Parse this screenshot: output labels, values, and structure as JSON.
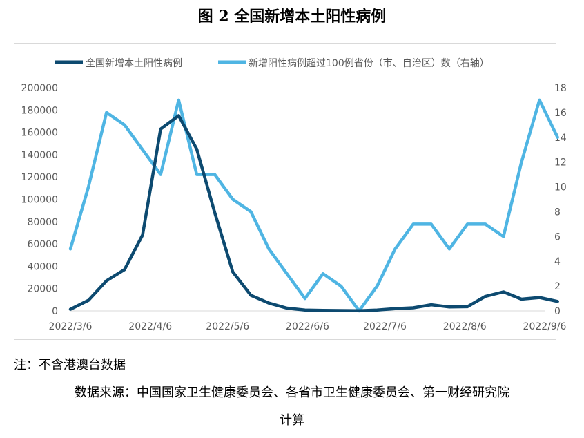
{
  "title": "图 2  全国新增本土阳性病例",
  "note": "注：不含港澳台数据",
  "source_line1": "数据来源：中国国家卫生健康委员会、各省市卫生健康委员会、第一财经研究院",
  "source_line2": "计算",
  "colors": {
    "series_main": "#0d4a70",
    "series_provinces": "#4fb5e3",
    "frame": "#d9d9d9",
    "text": "#595959"
  },
  "chart_data": {
    "type": "line",
    "xlabel": "",
    "ylabel": "",
    "x_ticks": [
      "2022/3/6",
      "2022/4/6",
      "2022/5/6",
      "2022/6/6",
      "2022/7/6",
      "2022/8/6",
      "2022/9/6"
    ],
    "x_dates": [
      "2022-03-06",
      "2022-03-13",
      "2022-03-20",
      "2022-03-27",
      "2022-04-03",
      "2022-04-10",
      "2022-04-17",
      "2022-04-24",
      "2022-05-01",
      "2022-05-08",
      "2022-05-15",
      "2022-05-22",
      "2022-05-29",
      "2022-06-05",
      "2022-06-12",
      "2022-06-19",
      "2022-06-26",
      "2022-07-03",
      "2022-07-10",
      "2022-07-17",
      "2022-07-24",
      "2022-07-31",
      "2022-08-07",
      "2022-08-14",
      "2022-08-21",
      "2022-08-28",
      "2022-09-04",
      "2022-09-11"
    ],
    "ylim_left": [
      0,
      200000
    ],
    "y_ticks_left": [
      "200000",
      "180000",
      "160000",
      "140000",
      "120000",
      "100000",
      "80000",
      "60000",
      "40000",
      "20000",
      "0"
    ],
    "ylim_right": [
      0,
      18
    ],
    "y_ticks_right": [
      "18",
      "16",
      "14",
      "12",
      "10",
      "8",
      "6",
      "4",
      "2",
      "0"
    ],
    "legend_position": "top",
    "grid": false,
    "series": [
      {
        "name": "全国新增本土阳性病例",
        "axis": "left",
        "values": [
          1500,
          9500,
          27000,
          37000,
          68000,
          163000,
          175000,
          145000,
          88000,
          35000,
          14000,
          7000,
          2500,
          800,
          500,
          300,
          200,
          800,
          2000,
          2800,
          5500,
          3500,
          3800,
          13000,
          17000,
          10500,
          12000,
          8500
        ]
      },
      {
        "name": "新增阳性病例超过100例省份（市、自治区）数（右轴）",
        "axis": "right",
        "values": [
          5,
          10,
          16,
          15,
          13,
          11,
          17,
          11,
          11,
          9,
          8,
          5,
          3,
          1,
          3,
          2,
          0,
          2,
          5,
          7,
          7,
          5,
          7,
          7,
          6,
          12,
          17,
          14
        ]
      }
    ]
  }
}
